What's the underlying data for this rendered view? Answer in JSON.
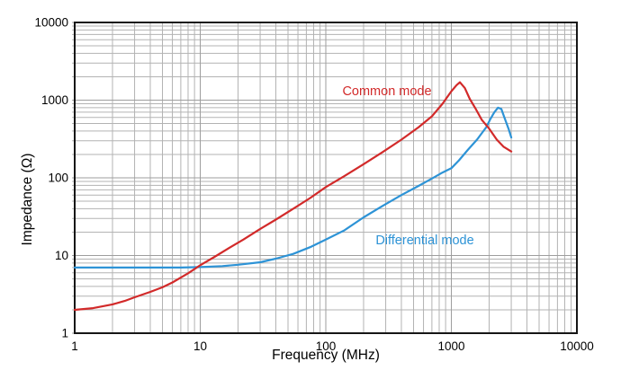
{
  "chart_data": {
    "type": "line",
    "title": "",
    "xlabel": "Frequency (MHz)",
    "ylabel": "Impedance (Ω)",
    "x_scale": "log",
    "y_scale": "log",
    "xlim": [
      1,
      10000
    ],
    "ylim": [
      1,
      10000
    ],
    "x_ticks": [
      "1",
      "10",
      "100",
      "1000",
      "10000"
    ],
    "y_ticks": [
      "1",
      "10",
      "100",
      "1000",
      "10000"
    ],
    "grid": {
      "major": true,
      "minor": true,
      "minor_color": "#b3b3b3",
      "major_color": "#9e9e9e"
    },
    "legend_position": "inline-curve-labels",
    "series": [
      {
        "name": "Common mode",
        "color": "#d22a2a",
        "points": [
          [
            1,
            2.0
          ],
          [
            1.4,
            2.1
          ],
          [
            2,
            2.35
          ],
          [
            2.5,
            2.6
          ],
          [
            3,
            2.9
          ],
          [
            4,
            3.4
          ],
          [
            5,
            3.9
          ],
          [
            6,
            4.5
          ],
          [
            8,
            5.9
          ],
          [
            10,
            7.5
          ],
          [
            13,
            9.6
          ],
          [
            17,
            12.5
          ],
          [
            22,
            16
          ],
          [
            30,
            22
          ],
          [
            40,
            29
          ],
          [
            55,
            40
          ],
          [
            75,
            55
          ],
          [
            100,
            76
          ],
          [
            140,
            105
          ],
          [
            200,
            150
          ],
          [
            280,
            212
          ],
          [
            400,
            310
          ],
          [
            550,
            450
          ],
          [
            700,
            620
          ],
          [
            850,
            900
          ],
          [
            1000,
            1300
          ],
          [
            1100,
            1560
          ],
          [
            1170,
            1700
          ],
          [
            1280,
            1430
          ],
          [
            1400,
            1040
          ],
          [
            1550,
            790
          ],
          [
            1750,
            555
          ],
          [
            2000,
            430
          ],
          [
            2300,
            310
          ],
          [
            2600,
            252
          ],
          [
            3000,
            218
          ]
        ]
      },
      {
        "name": "Differential mode",
        "color": "#2d93d6",
        "points": [
          [
            1,
            7
          ],
          [
            2,
            7
          ],
          [
            4,
            7
          ],
          [
            7,
            7
          ],
          [
            10,
            7.1
          ],
          [
            15,
            7.3
          ],
          [
            20,
            7.6
          ],
          [
            30,
            8.2
          ],
          [
            40,
            9.1
          ],
          [
            55,
            10.5
          ],
          [
            75,
            12.8
          ],
          [
            100,
            16
          ],
          [
            140,
            21
          ],
          [
            200,
            31
          ],
          [
            280,
            43
          ],
          [
            400,
            60
          ],
          [
            550,
            79
          ],
          [
            700,
            98
          ],
          [
            850,
            117
          ],
          [
            1000,
            133
          ],
          [
            1150,
            168
          ],
          [
            1350,
            228
          ],
          [
            1600,
            310
          ],
          [
            1900,
            450
          ],
          [
            2050,
            575
          ],
          [
            2200,
            700
          ],
          [
            2350,
            800
          ],
          [
            2500,
            770
          ],
          [
            2700,
            545
          ],
          [
            2850,
            430
          ],
          [
            3000,
            330
          ]
        ]
      }
    ],
    "annotations": [
      {
        "text": "Common mode",
        "series": "Common mode",
        "color": "#d22a2a",
        "x": 430,
        "y": 102
      },
      {
        "text": "Differential mode",
        "series": "Differential mode",
        "color": "#2d93d6",
        "x": 472,
        "y": 268
      }
    ]
  }
}
